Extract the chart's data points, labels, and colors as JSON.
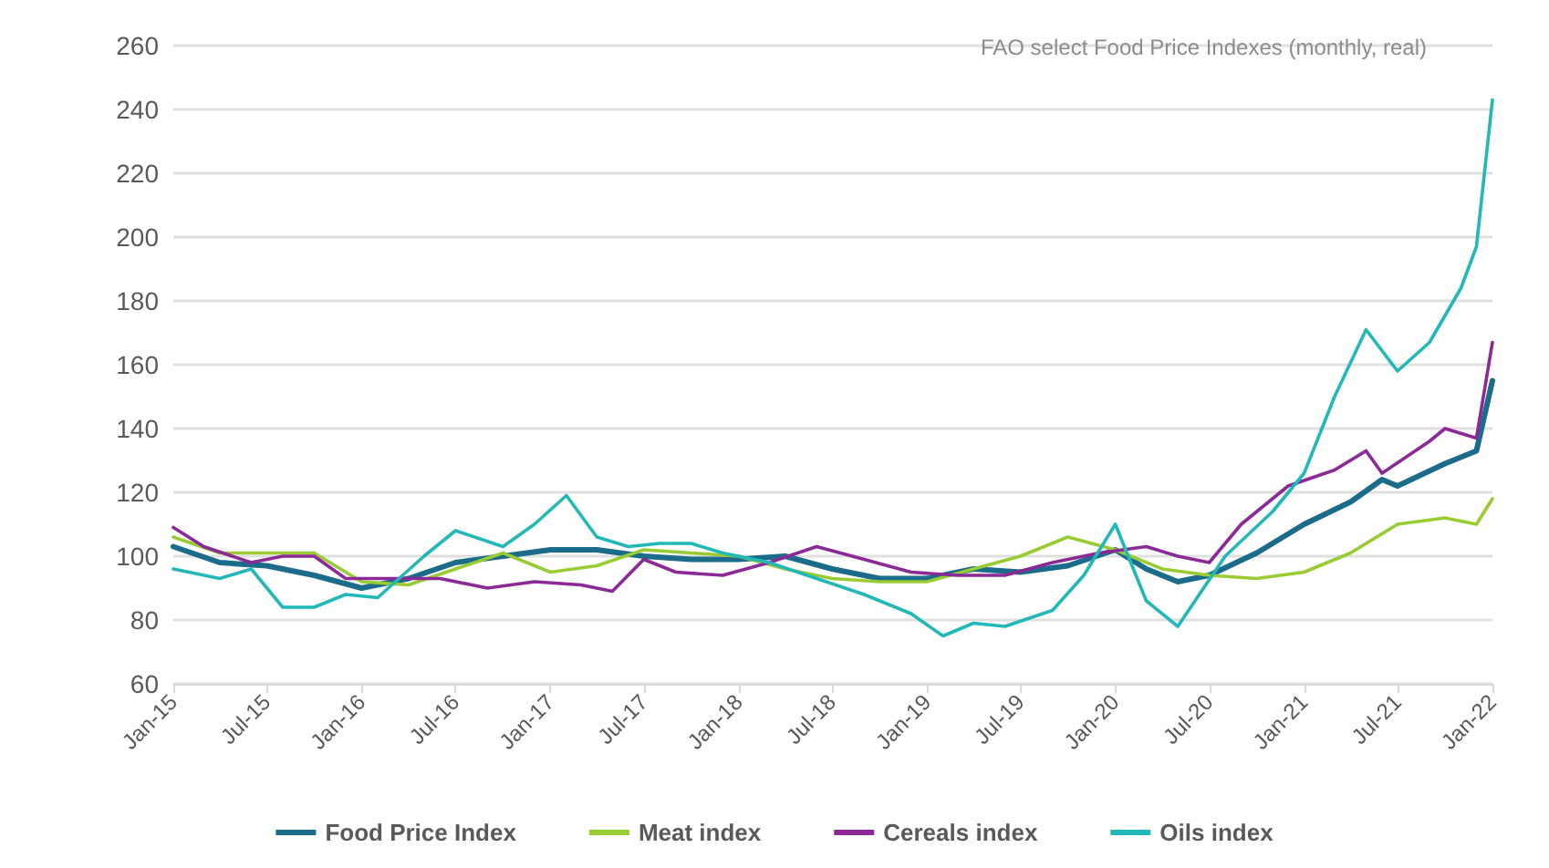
{
  "chart_data": {
    "type": "line",
    "title": "FAO select Food Price Indexes (monthly, real)",
    "xlim": [
      "2015-01",
      "2022-01"
    ],
    "xticks": [
      {
        "value": "2015-01",
        "label": "Jan-15"
      },
      {
        "value": "2015-07",
        "label": "Jul-15"
      },
      {
        "value": "2016-01",
        "label": "Jan-16"
      },
      {
        "value": "2016-07",
        "label": "Jul-16"
      },
      {
        "value": "2017-01",
        "label": "Jan-17"
      },
      {
        "value": "2017-07",
        "label": "Jul-17"
      },
      {
        "value": "2018-01",
        "label": "Jan-18"
      },
      {
        "value": "2018-07",
        "label": "Jul-18"
      },
      {
        "value": "2019-01",
        "label": "Jan-19"
      },
      {
        "value": "2019-07",
        "label": "Jul-19"
      },
      {
        "value": "2020-01",
        "label": "Jan-20"
      },
      {
        "value": "2020-07",
        "label": "Jul-20"
      },
      {
        "value": "2021-01",
        "label": "Jan-21"
      },
      {
        "value": "2021-07",
        "label": "Jul-21"
      },
      {
        "value": "2022-01",
        "label": "Jan-22"
      }
    ],
    "ylim": [
      60,
      260
    ],
    "yticks": [
      60,
      80,
      100,
      120,
      140,
      160,
      180,
      200,
      220,
      240,
      260
    ],
    "grid": "y",
    "legend": "bottom",
    "marker": "none",
    "line_style": "solid",
    "series": [
      {
        "name": "Food Price Index",
        "color": "#1b6b8a",
        "x": [
          "2015-01",
          "2015-04",
          "2015-07",
          "2015-10",
          "2016-01",
          "2016-04",
          "2016-07",
          "2016-10",
          "2017-01",
          "2017-04",
          "2017-07",
          "2017-10",
          "2018-01",
          "2018-04",
          "2018-07",
          "2018-10",
          "2019-01",
          "2019-04",
          "2019-07",
          "2019-10",
          "2020-01",
          "2020-03",
          "2020-05",
          "2020-07",
          "2020-10",
          "2021-01",
          "2021-04",
          "2021-06",
          "2021-07",
          "2021-10",
          "2021-12",
          "2022-01"
        ],
        "values": [
          103,
          98,
          97,
          94,
          90,
          93,
          98,
          100,
          102,
          102,
          100,
          99,
          99,
          100,
          96,
          93,
          93,
          96,
          95,
          97,
          102,
          96,
          92,
          94,
          101,
          110,
          117,
          124,
          122,
          129,
          133,
          155
        ]
      },
      {
        "name": "Meat index",
        "color": "#99cc33",
        "x": [
          "2015-01",
          "2015-04",
          "2015-07",
          "2015-10",
          "2016-01",
          "2016-04",
          "2016-07",
          "2016-10",
          "2017-01",
          "2017-04",
          "2017-07",
          "2017-10",
          "2018-01",
          "2018-04",
          "2018-07",
          "2018-10",
          "2019-01",
          "2019-04",
          "2019-07",
          "2019-10",
          "2020-01",
          "2020-04",
          "2020-07",
          "2020-10",
          "2021-01",
          "2021-04",
          "2021-07",
          "2021-10",
          "2021-12",
          "2022-01"
        ],
        "values": [
          106,
          101,
          101,
          101,
          92,
          91,
          96,
          101,
          95,
          97,
          102,
          101,
          100,
          96,
          93,
          92,
          92,
          96,
          100,
          106,
          102,
          96,
          94,
          93,
          95,
          101,
          110,
          112,
          110,
          118
        ]
      },
      {
        "name": "Cereals index",
        "color": "#8b2a96",
        "x": [
          "2015-01",
          "2015-03",
          "2015-06",
          "2015-08",
          "2015-10",
          "2015-12",
          "2016-03",
          "2016-06",
          "2016-09",
          "2016-12",
          "2017-03",
          "2017-05",
          "2017-07",
          "2017-09",
          "2017-12",
          "2018-03",
          "2018-06",
          "2018-09",
          "2018-12",
          "2019-03",
          "2019-06",
          "2019-09",
          "2019-12",
          "2020-03",
          "2020-05",
          "2020-07",
          "2020-09",
          "2020-12",
          "2021-03",
          "2021-05",
          "2021-06",
          "2021-09",
          "2021-10",
          "2021-12",
          "2022-01"
        ],
        "values": [
          109,
          103,
          98,
          100,
          100,
          93,
          93,
          93,
          90,
          92,
          91,
          89,
          99,
          95,
          94,
          98,
          103,
          99,
          95,
          94,
          94,
          98,
          101,
          103,
          100,
          98,
          110,
          122,
          127,
          133,
          126,
          136,
          140,
          137,
          167
        ]
      },
      {
        "name": "Oils index",
        "color": "#22b8b8",
        "x": [
          "2015-01",
          "2015-04",
          "2015-06",
          "2015-08",
          "2015-10",
          "2015-12",
          "2016-02",
          "2016-05",
          "2016-07",
          "2016-10",
          "2016-12",
          "2017-02",
          "2017-04",
          "2017-06",
          "2017-08",
          "2017-10",
          "2017-12",
          "2018-03",
          "2018-06",
          "2018-09",
          "2018-12",
          "2019-02",
          "2019-04",
          "2019-06",
          "2019-09",
          "2019-11",
          "2020-01",
          "2020-03",
          "2020-05",
          "2020-08",
          "2020-11",
          "2021-01",
          "2021-03",
          "2021-05",
          "2021-07",
          "2021-09",
          "2021-11",
          "2021-12",
          "2022-01"
        ],
        "values": [
          96,
          93,
          96,
          84,
          84,
          88,
          87,
          100,
          108,
          103,
          110,
          119,
          106,
          103,
          104,
          104,
          101,
          98,
          93,
          88,
          82,
          75,
          79,
          78,
          83,
          94,
          110,
          86,
          78,
          100,
          114,
          126,
          150,
          171,
          158,
          167,
          184,
          197,
          243
        ]
      }
    ]
  }
}
